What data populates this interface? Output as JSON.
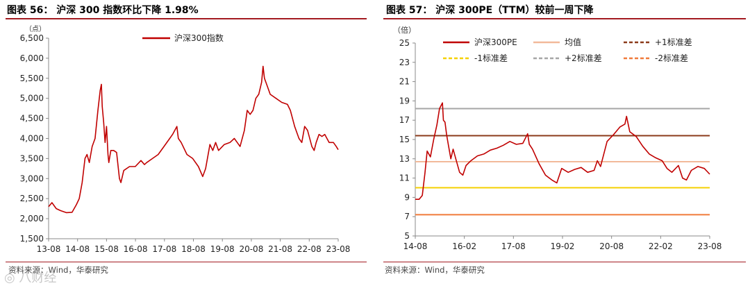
{
  "left": {
    "title": "图表 56：   沪深 300 指数环比下降 1.98%",
    "source": "资料来源：Wind，华泰研究",
    "chart_data": {
      "type": "line",
      "title": "",
      "ylabel": "（点）",
      "xlabel": "",
      "ylim": [
        1500,
        6500
      ],
      "yticks": [
        1500,
        2000,
        2500,
        3000,
        3500,
        4000,
        4500,
        5000,
        5500,
        6000,
        6500
      ],
      "ytick_labels": [
        "1,500",
        "2,000",
        "2,500",
        "3,000",
        "3,500",
        "4,000",
        "4,500",
        "5,000",
        "5,500",
        "6,000",
        "6,500"
      ],
      "xlim": [
        2013.583,
        2023.667
      ],
      "xtick_labels": [
        "13-08",
        "14-08",
        "15-08",
        "16-08",
        "17-08",
        "18-08",
        "19-08",
        "20-08",
        "21-08",
        "22-08",
        "23-08"
      ],
      "legend_position": "top-center",
      "series": [
        {
          "name": "沪深300指数",
          "color": "#c00000",
          "x": [
            2013.583,
            2013.7,
            2013.85,
            2014.0,
            2014.2,
            2014.4,
            2014.55,
            2014.65,
            2014.75,
            2014.85,
            2014.92,
            2015.0,
            2015.1,
            2015.2,
            2015.3,
            2015.38,
            2015.42,
            2015.45,
            2015.5,
            2015.55,
            2015.6,
            2015.65,
            2015.68,
            2015.75,
            2015.85,
            2015.95,
            2016.05,
            2016.1,
            2016.2,
            2016.4,
            2016.6,
            2016.8,
            2016.92,
            2017.0,
            2017.2,
            2017.4,
            2017.6,
            2017.8,
            2017.9,
            2018.05,
            2018.1,
            2018.2,
            2018.4,
            2018.6,
            2018.8,
            2018.95,
            2019.05,
            2019.2,
            2019.3,
            2019.4,
            2019.5,
            2019.7,
            2019.9,
            2020.05,
            2020.15,
            2020.25,
            2020.4,
            2020.5,
            2020.6,
            2020.7,
            2020.8,
            2020.9,
            2021.0,
            2021.05,
            2021.1,
            2021.2,
            2021.3,
            2021.5,
            2021.7,
            2021.9,
            2022.0,
            2022.15,
            2022.3,
            2022.4,
            2022.5,
            2022.6,
            2022.75,
            2022.83,
            2022.9,
            2023.0,
            2023.1,
            2023.2,
            2023.35,
            2023.5,
            2023.6,
            2023.667
          ],
          "values": [
            2300,
            2400,
            2250,
            2200,
            2150,
            2160,
            2350,
            2500,
            2900,
            3500,
            3600,
            3400,
            3800,
            4000,
            4700,
            5200,
            5350,
            4800,
            4400,
            3900,
            4300,
            3600,
            3400,
            3700,
            3700,
            3650,
            3000,
            2900,
            3200,
            3300,
            3300,
            3450,
            3350,
            3400,
            3500,
            3600,
            3800,
            4000,
            4100,
            4300,
            4000,
            3900,
            3600,
            3500,
            3300,
            3050,
            3250,
            3850,
            3700,
            3900,
            3700,
            3850,
            3900,
            4000,
            3900,
            3800,
            4200,
            4700,
            4600,
            4700,
            5000,
            5100,
            5400,
            5800,
            5500,
            5300,
            5100,
            5000,
            4900,
            4850,
            4700,
            4300,
            4000,
            3900,
            4300,
            4200,
            3800,
            3700,
            3900,
            4100,
            4050,
            4100,
            3900,
            3900,
            3800,
            3720
          ]
        }
      ]
    }
  },
  "right": {
    "title": "图表 57：   沪深 300PE（TTM）较前一周下降",
    "source": "资料来源：Wind，华泰研究",
    "chart_data": {
      "type": "line",
      "title": "",
      "ylabel": "（倍）",
      "xlabel": "",
      "ylim": [
        5,
        25
      ],
      "yticks": [
        5,
        7,
        9,
        11,
        13,
        15,
        17,
        19,
        21,
        23,
        25
      ],
      "xlim": [
        2014.583,
        2023.667
      ],
      "xtick_labels": [
        "14-08",
        "16-02",
        "17-08",
        "19-02",
        "20-08",
        "22-02",
        "23-08"
      ],
      "legend_position": "top",
      "series": [
        {
          "name": "沪深300PE",
          "color": "#c00000",
          "style": "solid",
          "x": [
            2014.583,
            2014.7,
            2014.8,
            2014.88,
            2014.95,
            2015.05,
            2015.15,
            2015.25,
            2015.33,
            2015.42,
            2015.45,
            2015.5,
            2015.55,
            2015.6,
            2015.68,
            2015.75,
            2015.85,
            2015.95,
            2016.05,
            2016.15,
            2016.3,
            2016.5,
            2016.7,
            2016.9,
            2017.1,
            2017.3,
            2017.5,
            2017.7,
            2017.9,
            2018.05,
            2018.1,
            2018.2,
            2018.4,
            2018.6,
            2018.8,
            2018.95,
            2019.1,
            2019.3,
            2019.5,
            2019.7,
            2019.9,
            2020.1,
            2020.2,
            2020.3,
            2020.5,
            2020.7,
            2020.9,
            2021.05,
            2021.1,
            2021.2,
            2021.4,
            2021.6,
            2021.8,
            2022.0,
            2022.2,
            2022.35,
            2022.5,
            2022.7,
            2022.83,
            2022.95,
            2023.1,
            2023.3,
            2023.5,
            2023.667
          ],
          "values": [
            8.8,
            8.8,
            9.2,
            11.5,
            13.8,
            13.2,
            15.0,
            16.5,
            18.2,
            18.8,
            17.0,
            16.8,
            15.5,
            14.5,
            13.0,
            14.0,
            12.8,
            11.6,
            11.3,
            12.3,
            12.8,
            13.3,
            13.5,
            13.9,
            14.1,
            14.4,
            14.8,
            14.5,
            14.6,
            15.6,
            14.5,
            14.0,
            12.5,
            11.3,
            10.8,
            10.5,
            12.0,
            11.6,
            11.9,
            12.1,
            11.6,
            11.8,
            12.8,
            12.2,
            14.8,
            15.5,
            16.3,
            16.6,
            17.4,
            15.8,
            15.3,
            14.3,
            13.5,
            13.1,
            12.8,
            12.0,
            11.6,
            12.3,
            11.0,
            10.8,
            11.8,
            12.2,
            12.0,
            11.4
          ]
        },
        {
          "name": "均值",
          "color": "#f2b99a",
          "style": "solid",
          "value": 12.7
        },
        {
          "name": "+1标准差",
          "color": "#8b3a1a",
          "style": "solid",
          "value": 15.4
        },
        {
          "name": "-1标准差",
          "color": "#f5d000",
          "style": "solid",
          "value": 10.0
        },
        {
          "name": "+2标准差",
          "color": "#a6a6a6",
          "style": "solid",
          "value": 18.2
        },
        {
          "name": "-2标准差",
          "color": "#f07a3a",
          "style": "solid",
          "value": 7.2
        }
      ]
    }
  }
}
